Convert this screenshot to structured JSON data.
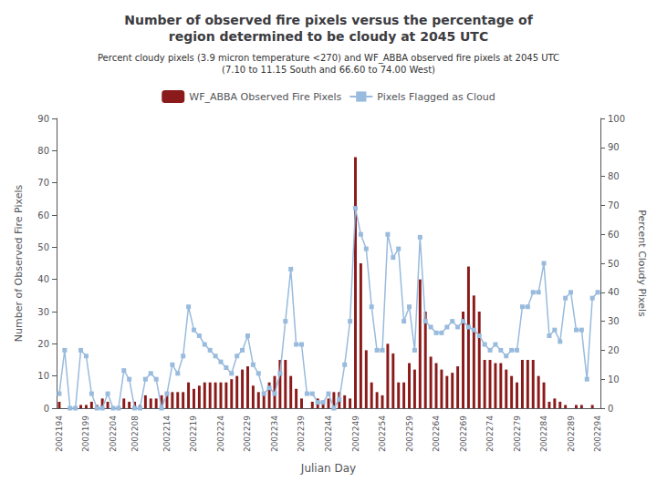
{
  "chart_data": {
    "type": "bar",
    "title": "Number of observed fire pixels versus the percentage of\nregion determined to be cloudy at 2045 UTC",
    "subtitle": "Percent cloudy pixels (3.9 micron temperature <270) and WF_ABBA observed fire pixels at 2045 UTC\n(7.10 to 11.15 South and 66.60 to 74.00 West)",
    "xlabel": "Julian Day",
    "ylabel": "Number of Observed Fire Pixels",
    "y2label": "Percent Cloudy Pixels",
    "categories": [
      "2002194",
      null,
      null,
      null,
      null,
      "2002199",
      null,
      null,
      null,
      null,
      "2002204",
      null,
      null,
      null,
      "2002208",
      null,
      null,
      null,
      null,
      null,
      "2002214",
      null,
      null,
      null,
      null,
      "2002219",
      null,
      null,
      null,
      null,
      "2002224",
      null,
      null,
      null,
      null,
      "2002229",
      null,
      null,
      null,
      null,
      "2002234",
      null,
      null,
      null,
      null,
      "2002239",
      null,
      null,
      null,
      null,
      "2002244",
      null,
      null,
      null,
      null,
      "2002249",
      null,
      null,
      null,
      null,
      "2002254",
      null,
      null,
      null,
      null,
      "2002259",
      null,
      null,
      null,
      null,
      "2002264",
      null,
      null,
      null,
      null,
      "2002269",
      null,
      null,
      null,
      null,
      "2002274",
      null,
      null,
      null,
      null,
      "2002279",
      null,
      null,
      null,
      null,
      "2002284",
      null,
      null,
      null,
      null,
      "2002289",
      null,
      null,
      null,
      null,
      "2002294"
    ],
    "series": [
      {
        "name": "WF_ABBA Observed Fire Pixels",
        "type": "bar",
        "color": "#8B1A1A",
        "values": [
          2,
          0,
          0,
          0,
          1,
          1,
          2,
          1,
          3,
          2,
          0,
          0,
          3,
          2,
          2,
          1,
          4,
          3,
          3,
          4,
          4,
          5,
          5,
          5,
          8,
          6,
          7,
          8,
          8,
          8,
          8,
          8,
          9,
          10,
          12,
          13,
          7,
          5,
          4,
          8,
          10,
          15,
          15,
          10,
          6,
          3,
          0,
          2,
          3,
          2,
          3,
          5,
          5,
          4,
          3,
          78,
          45,
          18,
          8,
          5,
          4,
          20,
          17,
          8,
          8,
          14,
          12,
          40,
          30,
          16,
          14,
          12,
          10,
          11,
          13,
          30,
          44,
          35,
          30,
          15,
          15,
          14,
          14,
          12,
          10,
          8,
          15,
          15,
          15,
          10,
          8,
          2,
          3,
          2,
          1,
          0,
          1,
          1,
          0,
          1,
          0
        ]
      },
      {
        "name": "Pixels Flagged as Cloud",
        "type": "line",
        "axis": "y2",
        "color": "#99BBDD",
        "marker": "square",
        "values": [
          5,
          20,
          0,
          0,
          20,
          18,
          5,
          0,
          0,
          5,
          0,
          0,
          13,
          10,
          0,
          0,
          10,
          12,
          10,
          0,
          5,
          15,
          12,
          18,
          35,
          27,
          25,
          22,
          20,
          18,
          16,
          14,
          12,
          18,
          20,
          25,
          15,
          12,
          5,
          7,
          5,
          12,
          30,
          48,
          22,
          22,
          5,
          5,
          2,
          2,
          5,
          0,
          3,
          15,
          30,
          69,
          60,
          55,
          35,
          20,
          20,
          60,
          52,
          55,
          30,
          35,
          20,
          59,
          30,
          28,
          26,
          26,
          28,
          30,
          28,
          30,
          28,
          27,
          25,
          22,
          20,
          22,
          20,
          18,
          20,
          20,
          35,
          35,
          40,
          40,
          50,
          25,
          27,
          23,
          38,
          40,
          27,
          27,
          10,
          38,
          40
        ]
      }
    ],
    "ylim": [
      0,
      90
    ],
    "yticks": [
      0,
      10,
      20,
      30,
      40,
      50,
      60,
      70,
      80,
      90
    ],
    "y2lim": [
      0,
      100
    ],
    "y2ticks": [
      0,
      10,
      20,
      30,
      40,
      50,
      60,
      70,
      80,
      90,
      100
    ],
    "legend": "top",
    "grid": false
  }
}
